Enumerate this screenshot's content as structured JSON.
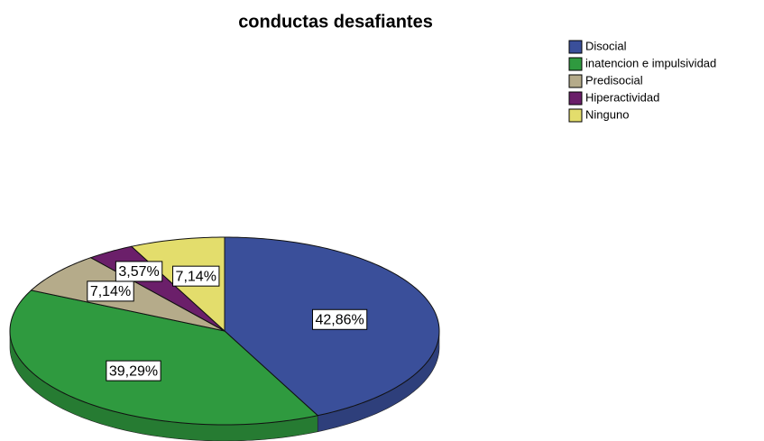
{
  "chart_data": {
    "type": "pie",
    "title": "conductas desafiantes",
    "categories": [
      "Disocial",
      "inatencion e impulsividad",
      "Predisocial",
      "Hiperactividad",
      "Ninguno"
    ],
    "values": [
      42.86,
      39.29,
      7.14,
      3.57,
      7.14
    ],
    "value_labels": [
      "42,86%",
      "39,29%",
      "7,14%",
      "3,57%",
      "7,14%"
    ],
    "colors": [
      "#3a4f9a",
      "#2f9a3f",
      "#b5ab8a",
      "#6b1f6a",
      "#e3dd6c"
    ]
  }
}
